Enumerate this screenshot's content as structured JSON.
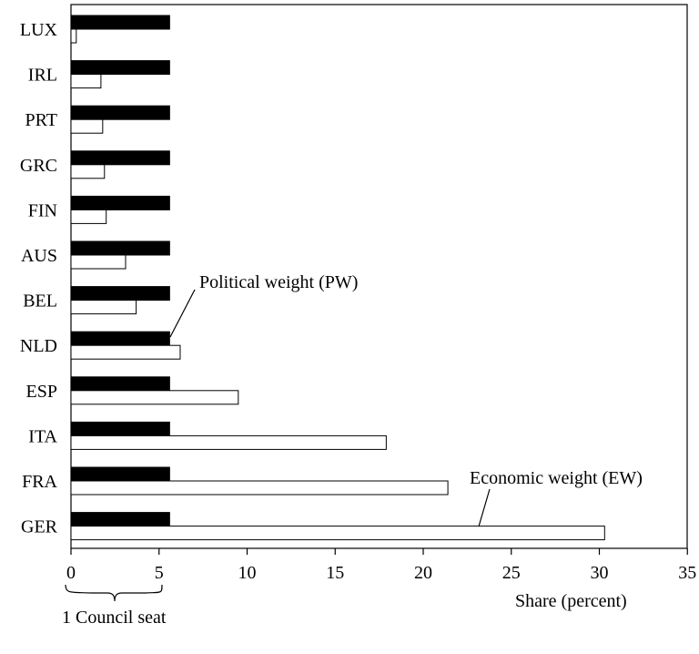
{
  "chart_data": {
    "type": "bar",
    "orientation": "horizontal",
    "categories": [
      "LUX",
      "IRL",
      "PRT",
      "GRC",
      "FIN",
      "AUS",
      "BEL",
      "NLD",
      "ESP",
      "ITA",
      "FRA",
      "GER"
    ],
    "series": [
      {
        "name": "Political weight (PW)",
        "fill": "#000000",
        "values": [
          5.6,
          5.6,
          5.6,
          5.6,
          5.6,
          5.6,
          5.6,
          5.6,
          5.6,
          5.6,
          5.6,
          5.6
        ]
      },
      {
        "name": "Economic weight (EW)",
        "fill": "#ffffff",
        "values": [
          0.3,
          1.7,
          1.8,
          1.9,
          2.0,
          3.1,
          3.7,
          6.2,
          9.5,
          17.9,
          21.4,
          30.3
        ]
      }
    ],
    "xlim": [
      0,
      35
    ],
    "xticks": [
      "0",
      "5",
      "10",
      "15",
      "20",
      "25",
      "30",
      "35"
    ],
    "xlabel": "Share (percent)",
    "grid": false,
    "legend": "none",
    "annotations": {
      "pw_label": "Political weight (PW)",
      "ew_label": "Economic weight (EW)",
      "brace_label": "1 Council seat"
    }
  }
}
